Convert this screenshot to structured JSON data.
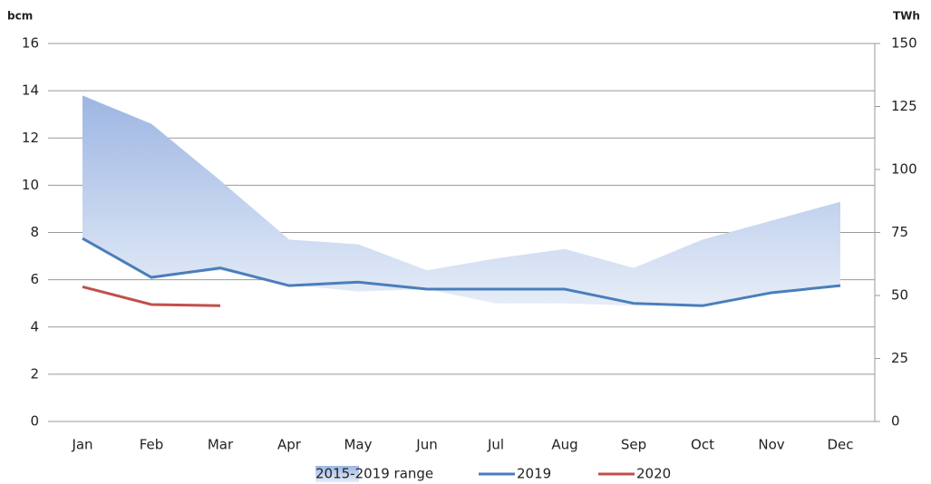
{
  "chart_data": {
    "type": "line",
    "y_label": "bcm",
    "y2_label": "TWh",
    "categories": [
      "Jan",
      "Feb",
      "Mar",
      "Apr",
      "May",
      "Jun",
      "Jul",
      "Aug",
      "Sep",
      "Oct",
      "Nov",
      "Dec"
    ],
    "range": {
      "name": "2015-2019 range",
      "color": "#9db6e3",
      "high": [
        13.8,
        12.6,
        10.2,
        7.7,
        7.5,
        6.4,
        6.9,
        7.3,
        6.5,
        7.7,
        8.5,
        9.3
      ],
      "low": [
        7.7,
        6.1,
        6.4,
        5.8,
        5.5,
        5.6,
        5.0,
        5.0,
        4.9,
        4.9,
        5.4,
        5.8
      ]
    },
    "series": [
      {
        "name": "2019",
        "color": "#4a7ebb",
        "values": [
          7.75,
          6.1,
          6.5,
          5.75,
          5.9,
          5.6,
          5.6,
          5.6,
          5.0,
          4.9,
          5.45,
          5.75
        ]
      },
      {
        "name": "2020",
        "color": "#c0504d",
        "values": [
          5.7,
          4.95,
          4.9,
          null,
          null,
          null,
          null,
          null,
          null,
          null,
          null,
          null
        ]
      }
    ],
    "ylim": [
      0,
      16
    ],
    "yticks": [
      0,
      2,
      4,
      6,
      8,
      10,
      12,
      14,
      16
    ],
    "y2lim": [
      0,
      150
    ],
    "y2ticks": [
      0,
      25,
      50,
      75,
      100,
      125,
      150
    ],
    "grid": true
  }
}
